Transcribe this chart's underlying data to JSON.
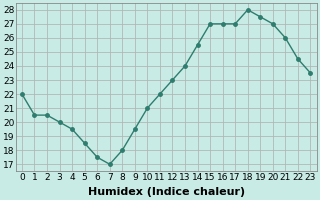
{
  "x": [
    0,
    1,
    2,
    3,
    4,
    5,
    6,
    7,
    8,
    9,
    10,
    11,
    12,
    13,
    14,
    15,
    16,
    17,
    18,
    19,
    20,
    21,
    22,
    23
  ],
  "y": [
    22,
    20.5,
    20.5,
    20,
    19.5,
    18.5,
    17.5,
    17,
    18,
    19.5,
    21,
    22,
    23,
    24,
    25.5,
    27,
    27,
    27,
    28,
    27.5,
    27,
    26,
    24.5,
    23.5
  ],
  "line_color": "#2e7d6e",
  "marker": "o",
  "marker_size": 2.5,
  "bg_color": "#c8ebe5",
  "grid_color": "#b0b8b4",
  "xlabel": "Humidex (Indice chaleur)",
  "ylabel_ticks": [
    17,
    18,
    19,
    20,
    21,
    22,
    23,
    24,
    25,
    26,
    27,
    28
  ],
  "xtick_labels": [
    "0",
    "1",
    "2",
    "3",
    "4",
    "5",
    "6",
    "7",
    "8",
    "9",
    "10",
    "11",
    "12",
    "13",
    "14",
    "15",
    "16",
    "17",
    "18",
    "19",
    "20",
    "21",
    "22",
    "23"
  ],
  "ylim": [
    16.5,
    28.5
  ],
  "xlim": [
    -0.5,
    23.5
  ],
  "xlabel_fontsize": 8,
  "tick_fontsize": 6.5,
  "line_width": 1.0
}
